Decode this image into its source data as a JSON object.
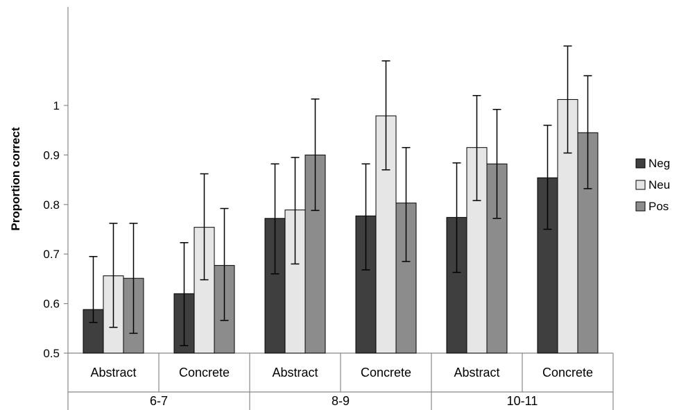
{
  "chart_data": {
    "type": "bar",
    "ylabel": "Proportion correct",
    "xlabel": "",
    "title": "",
    "ylim": [
      0.5,
      1.0
    ],
    "yticks": [
      0.5,
      0.6,
      0.7,
      0.8,
      0.9,
      1
    ],
    "ytick_labels": [
      "0.5",
      "0.6",
      "0.7",
      "0.8",
      "0.9",
      "1"
    ],
    "groups": [
      {
        "label": "6-7",
        "categories": [
          "Abstract",
          "Concrete"
        ]
      },
      {
        "label": "8-9",
        "categories": [
          "Abstract",
          "Concrete"
        ]
      },
      {
        "label": "10-11",
        "categories": [
          "Abstract",
          "Concrete"
        ]
      }
    ],
    "categories": [
      "Abstract",
      "Concrete",
      "Abstract",
      "Concrete",
      "Abstract",
      "Concrete"
    ],
    "series": [
      {
        "name": "Neg",
        "color": "#3f3f3f",
        "values": [
          0.588,
          0.62,
          0.772,
          0.777,
          0.774,
          0.854
        ],
        "err_low": [
          0.562,
          0.515,
          0.66,
          0.668,
          0.663,
          0.75
        ],
        "err_high": [
          0.695,
          0.723,
          0.882,
          0.882,
          0.884,
          0.96
        ]
      },
      {
        "name": "Neu",
        "color": "#e6e6e6",
        "values": [
          0.656,
          0.754,
          0.789,
          0.979,
          0.915,
          1.012
        ],
        "err_low": [
          0.552,
          0.648,
          0.68,
          0.87,
          0.808,
          0.904
        ],
        "err_high": [
          0.762,
          0.862,
          0.895,
          1.09,
          1.02,
          1.12
        ]
      },
      {
        "name": "Pos",
        "color": "#8c8c8c",
        "values": [
          0.651,
          0.677,
          0.9,
          0.803,
          0.882,
          0.945
        ],
        "err_low": [
          0.54,
          0.566,
          0.788,
          0.685,
          0.772,
          0.832
        ],
        "err_high": [
          0.762,
          0.792,
          1.013,
          0.915,
          0.992,
          1.06
        ]
      }
    ],
    "legend_position": "right",
    "grid": false
  }
}
